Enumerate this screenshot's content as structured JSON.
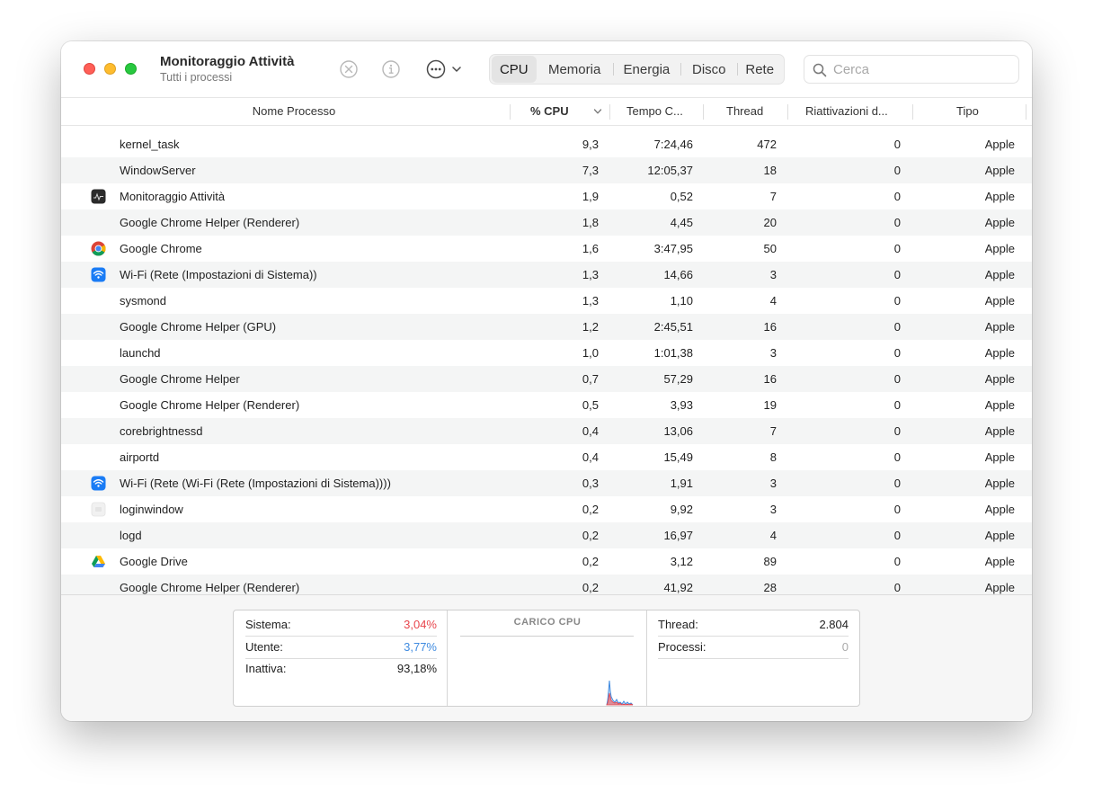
{
  "window": {
    "title": "Monitoraggio Attività",
    "subtitle": "Tutti i processi"
  },
  "toolbar": {
    "stop_icon": "x-circle-icon",
    "info_icon": "info-icon",
    "more_icon": "ellipsis-circle-icon",
    "tabs": [
      {
        "label": "CPU",
        "active": true
      },
      {
        "label": "Memoria",
        "active": false
      },
      {
        "label": "Energia",
        "active": false
      },
      {
        "label": "Disco",
        "active": false
      },
      {
        "label": "Rete",
        "active": false
      }
    ],
    "search_placeholder": "Cerca"
  },
  "table": {
    "headers": {
      "name": "Nome Processo",
      "cpu": "% CPU",
      "time": "Tempo C...",
      "threads": "Thread",
      "wakeups": "Riattivazioni d...",
      "kind": "Tipo"
    },
    "rows": [
      {
        "icon": "",
        "name": "kernel_task",
        "cpu": "9,3",
        "time": "7:24,46",
        "threads": "472",
        "wakeups": "0",
        "kind": "Apple"
      },
      {
        "icon": "",
        "name": "WindowServer",
        "cpu": "7,3",
        "time": "12:05,37",
        "threads": "18",
        "wakeups": "0",
        "kind": "Apple"
      },
      {
        "icon": "activity-monitor-icon",
        "name": "Monitoraggio Attività",
        "cpu": "1,9",
        "time": "0,52",
        "threads": "7",
        "wakeups": "0",
        "kind": "Apple"
      },
      {
        "icon": "",
        "name": "Google Chrome Helper (Renderer)",
        "cpu": "1,8",
        "time": "4,45",
        "threads": "20",
        "wakeups": "0",
        "kind": "Apple"
      },
      {
        "icon": "chrome-icon",
        "name": "Google Chrome",
        "cpu": "1,6",
        "time": "3:47,95",
        "threads": "50",
        "wakeups": "0",
        "kind": "Apple"
      },
      {
        "icon": "wifi-icon",
        "name": "Wi-Fi (Rete (Impostazioni di Sistema))",
        "cpu": "1,3",
        "time": "14,66",
        "threads": "3",
        "wakeups": "0",
        "kind": "Apple"
      },
      {
        "icon": "",
        "name": "sysmond",
        "cpu": "1,3",
        "time": "1,10",
        "threads": "4",
        "wakeups": "0",
        "kind": "Apple"
      },
      {
        "icon": "",
        "name": "Google Chrome Helper (GPU)",
        "cpu": "1,2",
        "time": "2:45,51",
        "threads": "16",
        "wakeups": "0",
        "kind": "Apple"
      },
      {
        "icon": "",
        "name": "launchd",
        "cpu": "1,0",
        "time": "1:01,38",
        "threads": "3",
        "wakeups": "0",
        "kind": "Apple"
      },
      {
        "icon": "",
        "name": "Google Chrome Helper",
        "cpu": "0,7",
        "time": "57,29",
        "threads": "16",
        "wakeups": "0",
        "kind": "Apple"
      },
      {
        "icon": "",
        "name": "Google Chrome Helper (Renderer)",
        "cpu": "0,5",
        "time": "3,93",
        "threads": "19",
        "wakeups": "0",
        "kind": "Apple"
      },
      {
        "icon": "",
        "name": "corebrightnessd",
        "cpu": "0,4",
        "time": "13,06",
        "threads": "7",
        "wakeups": "0",
        "kind": "Apple"
      },
      {
        "icon": "",
        "name": "airportd",
        "cpu": "0,4",
        "time": "15,49",
        "threads": "8",
        "wakeups": "0",
        "kind": "Apple"
      },
      {
        "icon": "wifi-icon",
        "name": "Wi-Fi (Rete (Wi-Fi (Rete (Impostazioni di Sistema))))",
        "cpu": "0,3",
        "time": "1,91",
        "threads": "3",
        "wakeups": "0",
        "kind": "Apple"
      },
      {
        "icon": "loginwindow-icon",
        "name": "loginwindow",
        "cpu": "0,2",
        "time": "9,92",
        "threads": "3",
        "wakeups": "0",
        "kind": "Apple"
      },
      {
        "icon": "",
        "name": "logd",
        "cpu": "0,2",
        "time": "16,97",
        "threads": "4",
        "wakeups": "0",
        "kind": "Apple"
      },
      {
        "icon": "google-drive-icon",
        "name": "Google Drive",
        "cpu": "0,2",
        "time": "3,12",
        "threads": "89",
        "wakeups": "0",
        "kind": "Apple"
      },
      {
        "icon": "",
        "name": "Google Chrome Helper (Renderer)",
        "cpu": "0,2",
        "time": "41,92",
        "threads": "28",
        "wakeups": "0",
        "kind": "Apple"
      }
    ]
  },
  "summary": {
    "system_label": "Sistema:",
    "system_value": "3,04%",
    "user_label": "Utente:",
    "user_value": "3,77%",
    "idle_label": "Inattiva:",
    "idle_value": "93,18%",
    "chart_title": "CARICO CPU",
    "threads_label": "Thread:",
    "threads_value": "2.804",
    "processes_label": "Processi:",
    "processes_value": "0",
    "colors": {
      "system": "#e8454c",
      "user": "#3f8be0"
    }
  }
}
